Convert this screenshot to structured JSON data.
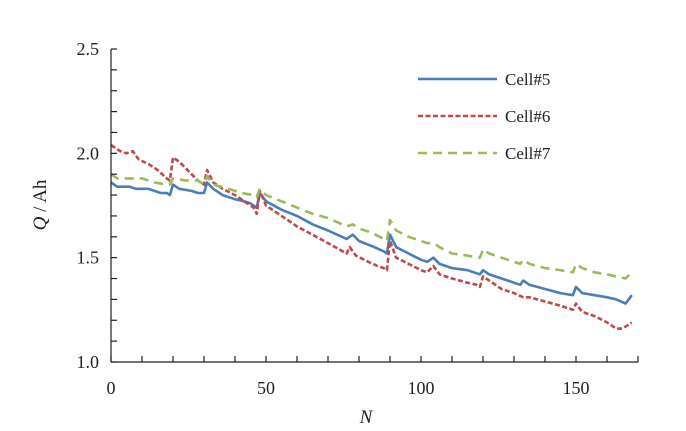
{
  "chart_data": {
    "type": "line",
    "title": "",
    "xlabel": "N",
    "ylabel_italic": "Q",
    "ylabel_unit": " / Ah",
    "xlim": [
      0,
      170
    ],
    "ylim": [
      1.0,
      2.5
    ],
    "x_major_ticks": [
      0,
      50,
      100,
      150
    ],
    "x_tick_labels": [
      "0",
      "50",
      "100",
      "150"
    ],
    "x_minor_step": 10,
    "y_major_ticks": [
      1.0,
      1.5,
      2.0,
      2.5
    ],
    "y_tick_labels": [
      "1.0",
      "1.5",
      "2.0",
      "2.5"
    ],
    "y_minor_step": 0.1,
    "grid": false,
    "legend_position": "top-right",
    "series": [
      {
        "name": "Cell#5",
        "color": "#4a7ebb",
        "style": "solid",
        "points": [
          [
            0,
            1.86
          ],
          [
            2,
            1.84
          ],
          [
            6,
            1.84
          ],
          [
            8,
            1.83
          ],
          [
            12,
            1.83
          ],
          [
            14,
            1.82
          ],
          [
            16,
            1.81
          ],
          [
            18,
            1.81
          ],
          [
            19,
            1.8
          ],
          [
            20,
            1.85
          ],
          [
            22,
            1.83
          ],
          [
            26,
            1.82
          ],
          [
            28,
            1.81
          ],
          [
            30,
            1.81
          ],
          [
            31,
            1.86
          ],
          [
            33,
            1.83
          ],
          [
            36,
            1.8
          ],
          [
            40,
            1.78
          ],
          [
            43,
            1.77
          ],
          [
            45,
            1.76
          ],
          [
            47,
            1.74
          ],
          [
            48,
            1.81
          ],
          [
            50,
            1.77
          ],
          [
            55,
            1.73
          ],
          [
            60,
            1.7
          ],
          [
            65,
            1.66
          ],
          [
            70,
            1.63
          ],
          [
            76,
            1.59
          ],
          [
            78,
            1.61
          ],
          [
            80,
            1.58
          ],
          [
            85,
            1.55
          ],
          [
            88,
            1.53
          ],
          [
            89,
            1.52
          ],
          [
            90,
            1.61
          ],
          [
            92,
            1.55
          ],
          [
            96,
            1.52
          ],
          [
            100,
            1.49
          ],
          [
            102,
            1.48
          ],
          [
            104,
            1.5
          ],
          [
            106,
            1.47
          ],
          [
            110,
            1.45
          ],
          [
            115,
            1.44
          ],
          [
            119,
            1.42
          ],
          [
            120,
            1.44
          ],
          [
            122,
            1.42
          ],
          [
            126,
            1.4
          ],
          [
            130,
            1.38
          ],
          [
            132,
            1.37
          ],
          [
            133,
            1.39
          ],
          [
            135,
            1.37
          ],
          [
            140,
            1.35
          ],
          [
            145,
            1.33
          ],
          [
            149,
            1.32
          ],
          [
            150,
            1.36
          ],
          [
            152,
            1.33
          ],
          [
            156,
            1.32
          ],
          [
            160,
            1.31
          ],
          [
            163,
            1.3
          ],
          [
            166,
            1.28
          ],
          [
            168,
            1.32
          ]
        ]
      },
      {
        "name": "Cell#6",
        "color": "#be4b48",
        "style": "dotted",
        "points": [
          [
            0,
            2.04
          ],
          [
            3,
            2.01
          ],
          [
            5,
            2.0
          ],
          [
            7,
            2.01
          ],
          [
            9,
            1.97
          ],
          [
            12,
            1.95
          ],
          [
            15,
            1.92
          ],
          [
            18,
            1.88
          ],
          [
            19,
            1.87
          ],
          [
            20,
            1.98
          ],
          [
            22,
            1.96
          ],
          [
            24,
            1.93
          ],
          [
            26,
            1.9
          ],
          [
            28,
            1.87
          ],
          [
            30,
            1.85
          ],
          [
            31,
            1.92
          ],
          [
            33,
            1.86
          ],
          [
            36,
            1.83
          ],
          [
            40,
            1.8
          ],
          [
            44,
            1.76
          ],
          [
            46,
            1.74
          ],
          [
            47,
            1.71
          ],
          [
            48,
            1.82
          ],
          [
            50,
            1.75
          ],
          [
            55,
            1.7
          ],
          [
            60,
            1.65
          ],
          [
            65,
            1.61
          ],
          [
            70,
            1.57
          ],
          [
            76,
            1.52
          ],
          [
            77,
            1.55
          ],
          [
            79,
            1.51
          ],
          [
            83,
            1.48
          ],
          [
            86,
            1.46
          ],
          [
            88,
            1.45
          ],
          [
            89,
            1.44
          ],
          [
            90,
            1.58
          ],
          [
            92,
            1.5
          ],
          [
            96,
            1.47
          ],
          [
            100,
            1.44
          ],
          [
            102,
            1.43
          ],
          [
            104,
            1.46
          ],
          [
            106,
            1.42
          ],
          [
            110,
            1.4
          ],
          [
            115,
            1.38
          ],
          [
            118,
            1.37
          ],
          [
            119,
            1.36
          ],
          [
            120,
            1.41
          ],
          [
            122,
            1.39
          ],
          [
            126,
            1.35
          ],
          [
            130,
            1.33
          ],
          [
            133,
            1.31
          ],
          [
            135,
            1.31
          ],
          [
            140,
            1.29
          ],
          [
            145,
            1.27
          ],
          [
            149,
            1.25
          ],
          [
            150,
            1.28
          ],
          [
            152,
            1.24
          ],
          [
            156,
            1.22
          ],
          [
            160,
            1.19
          ],
          [
            163,
            1.16
          ],
          [
            165,
            1.16
          ],
          [
            168,
            1.19
          ]
        ]
      },
      {
        "name": "Cell#7",
        "color": "#9bbb59",
        "style": "dashed",
        "points": [
          [
            0,
            1.9
          ],
          [
            2,
            1.88
          ],
          [
            6,
            1.88
          ],
          [
            10,
            1.88
          ],
          [
            14,
            1.86
          ],
          [
            18,
            1.85
          ],
          [
            19,
            1.85
          ],
          [
            20,
            1.88
          ],
          [
            24,
            1.87
          ],
          [
            28,
            1.87
          ],
          [
            30,
            1.85
          ],
          [
            31,
            1.89
          ],
          [
            33,
            1.85
          ],
          [
            38,
            1.83
          ],
          [
            42,
            1.81
          ],
          [
            46,
            1.8
          ],
          [
            47,
            1.79
          ],
          [
            48,
            1.83
          ],
          [
            50,
            1.8
          ],
          [
            55,
            1.77
          ],
          [
            60,
            1.74
          ],
          [
            65,
            1.71
          ],
          [
            70,
            1.69
          ],
          [
            76,
            1.65
          ],
          [
            78,
            1.66
          ],
          [
            80,
            1.64
          ],
          [
            84,
            1.62
          ],
          [
            88,
            1.59
          ],
          [
            89,
            1.58
          ],
          [
            90,
            1.68
          ],
          [
            92,
            1.63
          ],
          [
            96,
            1.6
          ],
          [
            100,
            1.58
          ],
          [
            102,
            1.57
          ],
          [
            104,
            1.57
          ],
          [
            106,
            1.55
          ],
          [
            110,
            1.52
          ],
          [
            115,
            1.51
          ],
          [
            119,
            1.5
          ],
          [
            120,
            1.54
          ],
          [
            122,
            1.52
          ],
          [
            126,
            1.5
          ],
          [
            130,
            1.48
          ],
          [
            132,
            1.47
          ],
          [
            133,
            1.49
          ],
          [
            135,
            1.47
          ],
          [
            140,
            1.45
          ],
          [
            145,
            1.44
          ],
          [
            149,
            1.43
          ],
          [
            150,
            1.47
          ],
          [
            152,
            1.45
          ],
          [
            156,
            1.43
          ],
          [
            160,
            1.42
          ],
          [
            163,
            1.41
          ],
          [
            166,
            1.4
          ],
          [
            168,
            1.43
          ]
        ]
      }
    ]
  }
}
